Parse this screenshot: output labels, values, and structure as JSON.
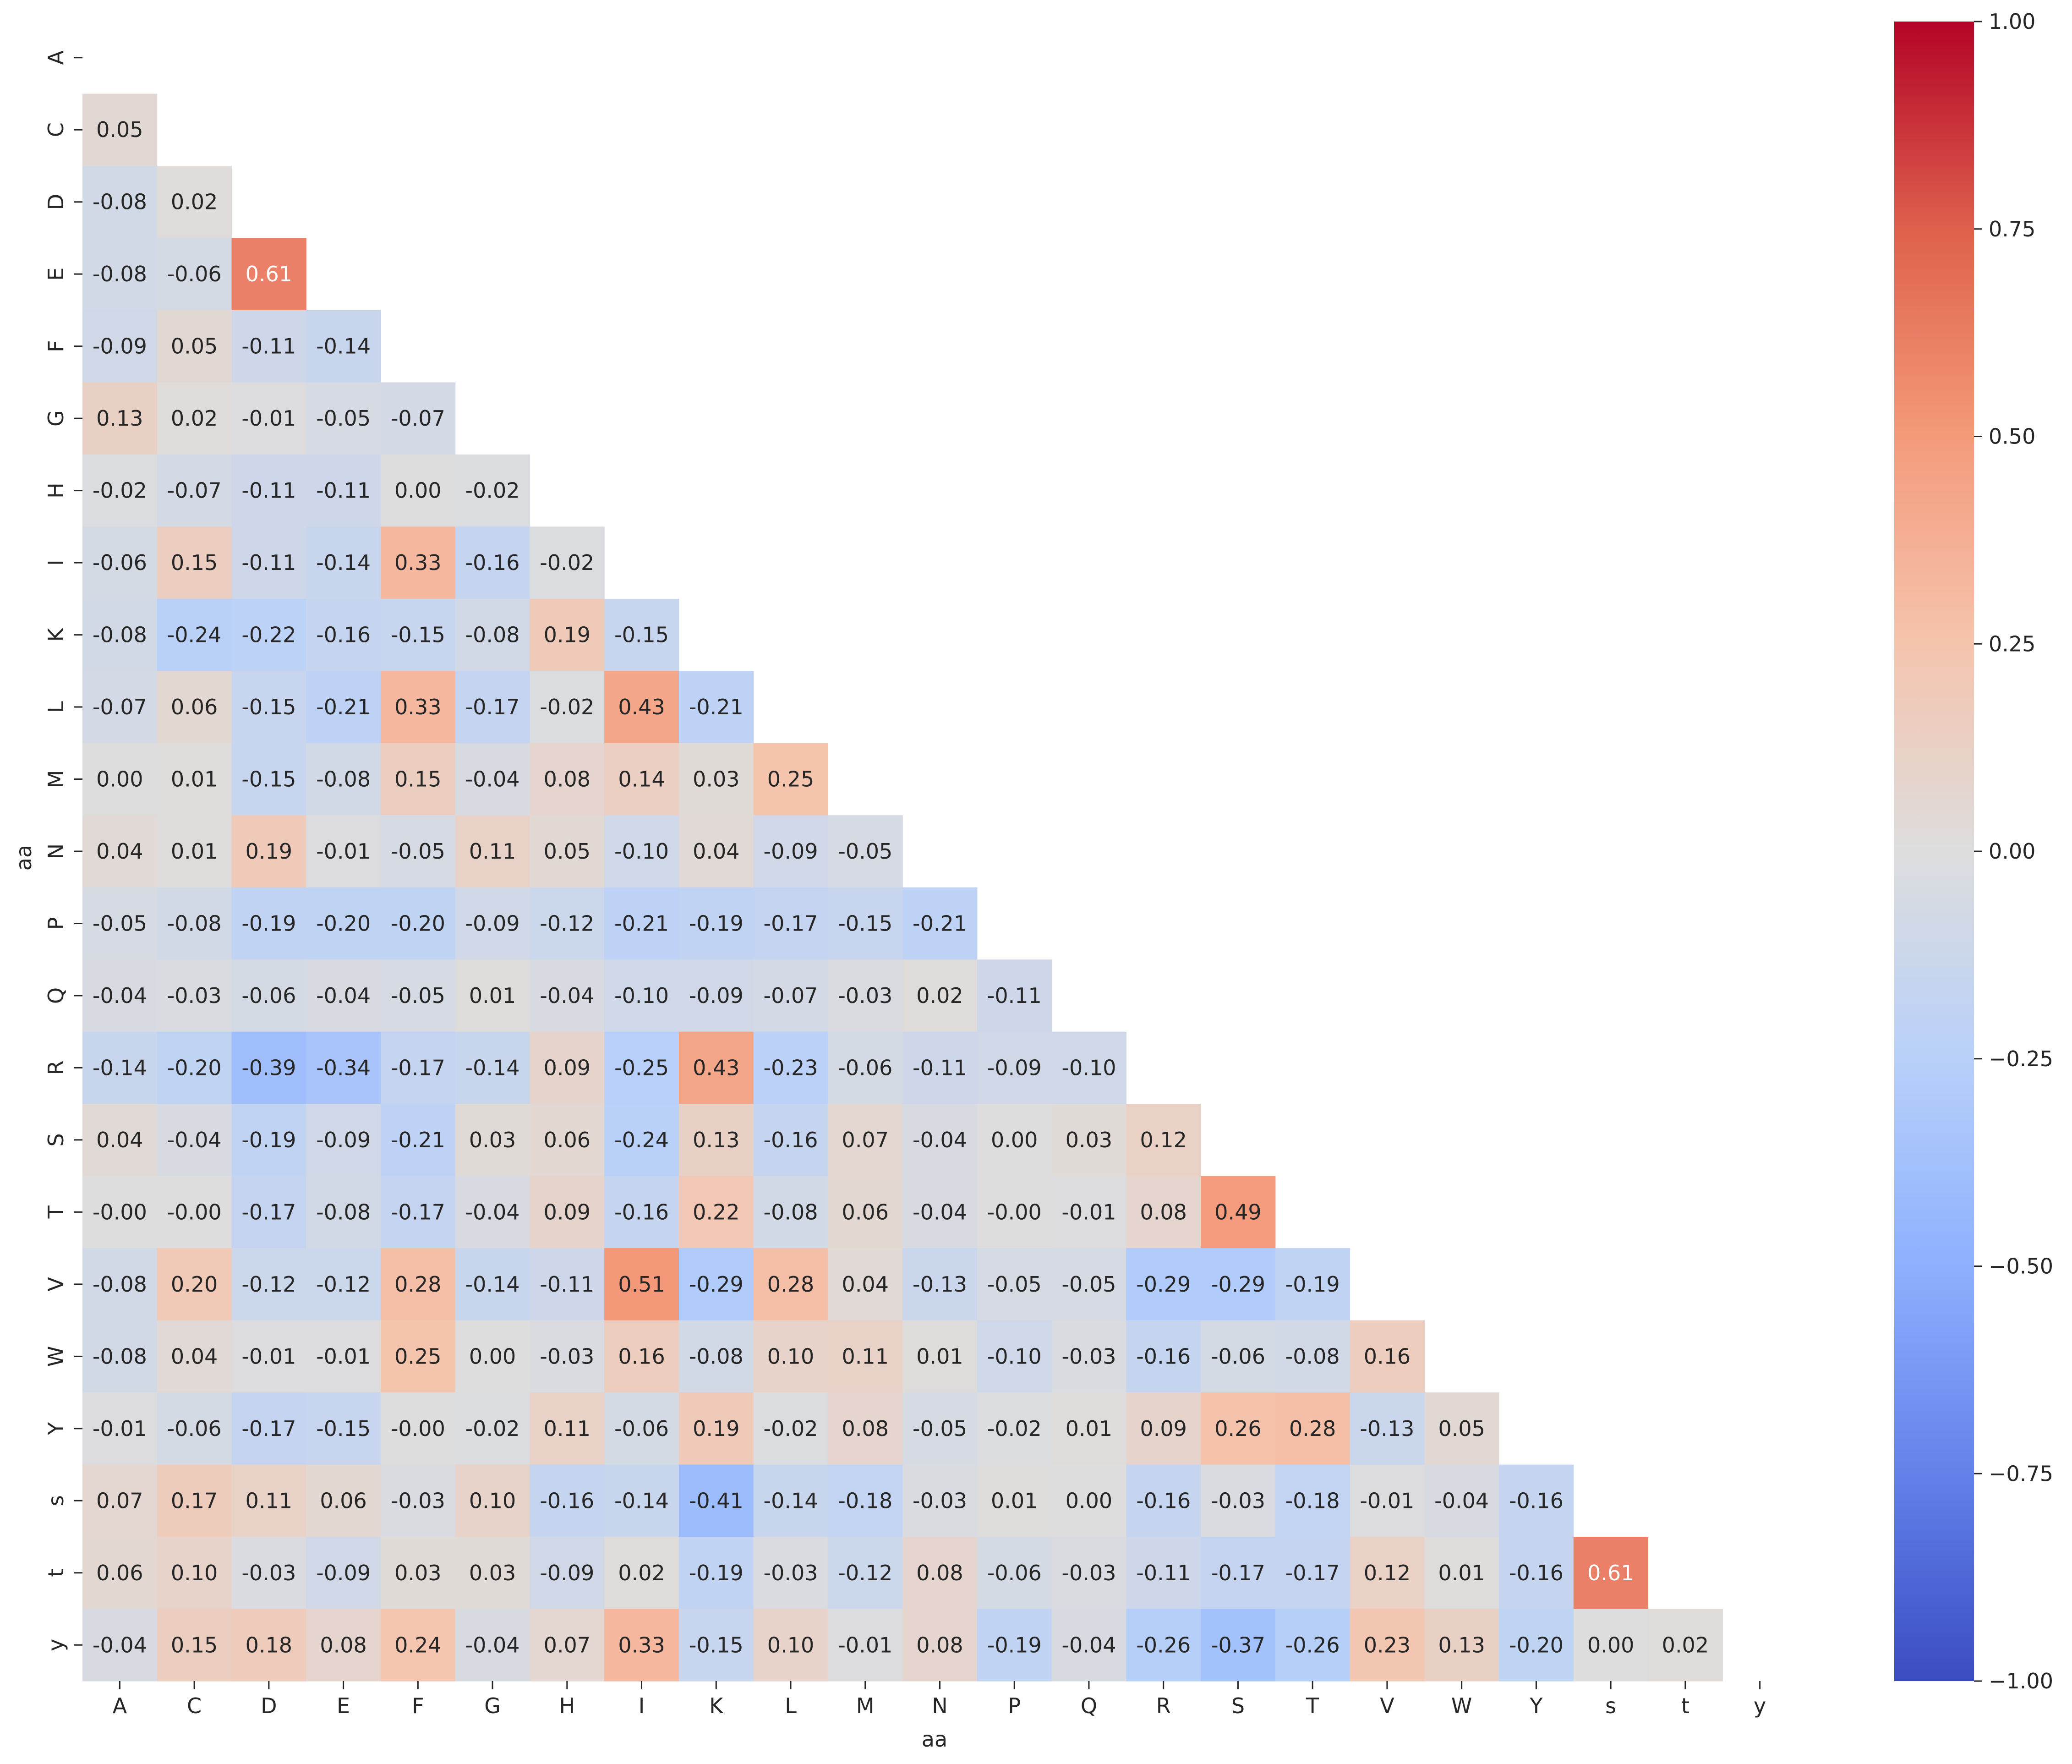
{
  "chart_data": {
    "type": "heatmap",
    "title": "",
    "xlabel": "aa",
    "ylabel": "aa",
    "labels": [
      "A",
      "C",
      "D",
      "E",
      "F",
      "G",
      "H",
      "I",
      "K",
      "L",
      "M",
      "N",
      "P",
      "Q",
      "R",
      "S",
      "T",
      "V",
      "W",
      "Y",
      "s",
      "t",
      "y"
    ],
    "rows": [
      [],
      [
        0.05
      ],
      [
        -0.08,
        0.02
      ],
      [
        -0.08,
        -0.06,
        0.61
      ],
      [
        -0.09,
        0.05,
        -0.11,
        -0.14
      ],
      [
        0.13,
        0.02,
        -0.01,
        -0.05,
        -0.07
      ],
      [
        -0.02,
        -0.07,
        -0.11,
        -0.11,
        0.0,
        -0.02
      ],
      [
        -0.06,
        0.15,
        -0.11,
        -0.14,
        0.33,
        -0.16,
        -0.02
      ],
      [
        -0.08,
        -0.24,
        -0.22,
        -0.16,
        -0.15,
        -0.08,
        0.19,
        -0.15
      ],
      [
        -0.07,
        0.06,
        -0.15,
        -0.21,
        0.33,
        -0.17,
        -0.02,
        0.43,
        -0.21
      ],
      [
        0.0,
        0.01,
        -0.15,
        -0.08,
        0.15,
        -0.04,
        0.08,
        0.14,
        0.03,
        0.25
      ],
      [
        0.04,
        0.01,
        0.19,
        -0.01,
        -0.05,
        0.11,
        0.05,
        -0.1,
        0.04,
        -0.09,
        -0.05
      ],
      [
        -0.05,
        -0.08,
        -0.19,
        -0.2,
        -0.2,
        -0.09,
        -0.12,
        -0.21,
        -0.19,
        -0.17,
        -0.15,
        -0.21
      ],
      [
        -0.04,
        -0.03,
        -0.06,
        -0.04,
        -0.05,
        0.01,
        -0.04,
        -0.1,
        -0.09,
        -0.07,
        -0.03,
        0.02,
        -0.11
      ],
      [
        -0.14,
        -0.2,
        -0.39,
        -0.34,
        -0.17,
        -0.14,
        0.09,
        -0.25,
        0.43,
        -0.23,
        -0.06,
        -0.11,
        -0.09,
        -0.1
      ],
      [
        0.04,
        -0.04,
        -0.19,
        -0.09,
        -0.21,
        0.03,
        0.06,
        -0.24,
        0.13,
        -0.16,
        0.07,
        -0.04,
        0.0,
        0.03,
        0.12
      ],
      [
        "-0.00",
        "-0.00",
        -0.17,
        -0.08,
        -0.17,
        -0.04,
        0.09,
        -0.16,
        0.22,
        -0.08,
        0.06,
        -0.04,
        "-0.00",
        -0.01,
        0.08,
        0.49
      ],
      [
        -0.08,
        0.2,
        -0.12,
        -0.12,
        0.28,
        -0.14,
        -0.11,
        0.51,
        -0.29,
        0.28,
        0.04,
        -0.13,
        -0.05,
        -0.05,
        -0.29,
        -0.29,
        -0.19
      ],
      [
        -0.08,
        0.04,
        -0.01,
        -0.01,
        0.25,
        0.0,
        -0.03,
        0.16,
        -0.08,
        0.1,
        0.11,
        0.01,
        -0.1,
        -0.03,
        -0.16,
        -0.06,
        -0.08,
        0.16
      ],
      [
        -0.01,
        -0.06,
        -0.17,
        -0.15,
        "-0.00",
        -0.02,
        0.11,
        -0.06,
        0.19,
        -0.02,
        0.08,
        -0.05,
        -0.02,
        0.01,
        0.09,
        0.26,
        0.28,
        -0.13,
        0.05
      ],
      [
        0.07,
        0.17,
        0.11,
        0.06,
        -0.03,
        0.1,
        -0.16,
        -0.14,
        -0.41,
        -0.14,
        -0.18,
        -0.03,
        0.01,
        0.0,
        -0.16,
        -0.03,
        -0.18,
        -0.01,
        -0.04,
        -0.16
      ],
      [
        0.06,
        0.1,
        -0.03,
        -0.09,
        0.03,
        0.03,
        -0.09,
        0.02,
        -0.19,
        -0.03,
        -0.12,
        0.08,
        -0.06,
        -0.03,
        -0.11,
        -0.17,
        -0.17,
        0.12,
        0.01,
        -0.16,
        0.61
      ],
      [
        -0.04,
        0.15,
        0.18,
        0.08,
        0.24,
        -0.04,
        0.07,
        0.33,
        -0.15,
        0.1,
        -0.01,
        0.08,
        -0.19,
        -0.04,
        -0.26,
        -0.37,
        -0.26,
        0.23,
        0.13,
        -0.2,
        0.0,
        0.02
      ]
    ],
    "vmin": -1.0,
    "vmax": 1.0,
    "colormap": "coolwarm",
    "colorbar_ticks": [
      "1.00",
      "0.75",
      "0.50",
      "0.25",
      "0.00",
      "−0.25",
      "−0.50",
      "−0.75",
      "−1.00"
    ],
    "colorbar_tick_values": [
      1.0,
      0.75,
      0.5,
      0.25,
      0.0,
      -0.25,
      -0.5,
      -0.75,
      -1.0
    ],
    "colors": {
      "low": "#3b4cc0",
      "mid": "#dddddd",
      "high": "#b40426"
    }
  }
}
